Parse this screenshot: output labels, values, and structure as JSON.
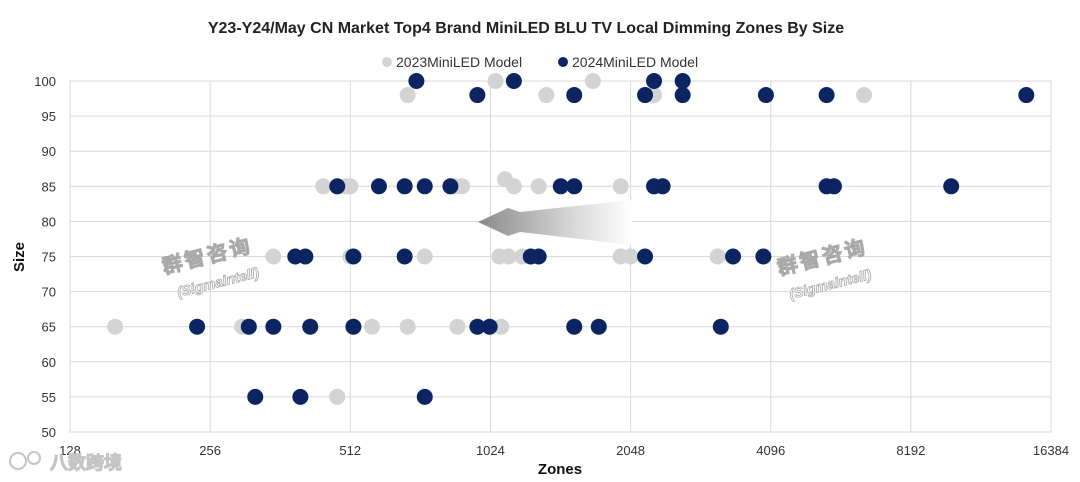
{
  "chart_data": {
    "type": "scatter",
    "title": "Y23-Y24/May CN Market Top4 Brand MiniLED BLU TV Local Dimming Zones By Size",
    "xlabel": "Zones",
    "ylabel": "Size",
    "x_scale": "log2",
    "xlim": [
      128,
      16384
    ],
    "ylim": [
      50,
      100
    ],
    "x_ticks": [
      128,
      256,
      512,
      1024,
      2048,
      4096,
      8192,
      16384
    ],
    "x_tick_labels": [
      "128",
      "256",
      "512",
      "1024",
      "2048",
      "4096",
      "8192",
      "16384"
    ],
    "y_ticks": [
      50,
      55,
      60,
      65,
      70,
      75,
      80,
      85,
      90,
      95,
      100
    ],
    "y_tick_labels": [
      "50",
      "55",
      "60",
      "65",
      "70",
      "75",
      "80",
      "85",
      "90",
      "95",
      "100"
    ],
    "grid": true,
    "legend_position": "top",
    "series": [
      {
        "name": "2023MiniLED Model",
        "color": "#d3d3d3",
        "points": [
          [
            680,
            98
          ],
          [
            1050,
            100
          ],
          [
            1350,
            98
          ],
          [
            1700,
            100
          ],
          [
            2300,
            98
          ],
          [
            6500,
            98
          ],
          [
            448,
            85
          ],
          [
            500,
            85
          ],
          [
            512,
            85
          ],
          [
            860,
            85
          ],
          [
            890,
            85
          ],
          [
            1100,
            86
          ],
          [
            1150,
            85
          ],
          [
            1300,
            85
          ],
          [
            1950,
            85
          ],
          [
            350,
            75
          ],
          [
            512,
            75
          ],
          [
            740,
            75
          ],
          [
            1070,
            75
          ],
          [
            1120,
            75
          ],
          [
            1200,
            75
          ],
          [
            1950,
            75
          ],
          [
            2050,
            75
          ],
          [
            3150,
            75
          ],
          [
            160,
            65
          ],
          [
            300,
            65
          ],
          [
            570,
            65
          ],
          [
            680,
            65
          ],
          [
            870,
            65
          ],
          [
            1080,
            65
          ],
          [
            1550,
            65
          ],
          [
            480,
            55
          ]
        ]
      },
      {
        "name": "2024MiniLED Model",
        "color": "#0c2461",
        "points": [
          [
            710,
            100
          ],
          [
            1150,
            100
          ],
          [
            2300,
            100
          ],
          [
            2650,
            100
          ],
          [
            960,
            98
          ],
          [
            1550,
            98
          ],
          [
            2200,
            98
          ],
          [
            2650,
            98
          ],
          [
            4000,
            98
          ],
          [
            5400,
            98
          ],
          [
            14500,
            98
          ],
          [
            480,
            85
          ],
          [
            590,
            85
          ],
          [
            670,
            85
          ],
          [
            740,
            85
          ],
          [
            840,
            85
          ],
          [
            1450,
            85
          ],
          [
            1550,
            85
          ],
          [
            2300,
            85
          ],
          [
            2400,
            85
          ],
          [
            5400,
            85
          ],
          [
            5600,
            85
          ],
          [
            10000,
            85
          ],
          [
            390,
            75
          ],
          [
            410,
            75
          ],
          [
            520,
            75
          ],
          [
            670,
            75
          ],
          [
            1250,
            75
          ],
          [
            1300,
            75
          ],
          [
            2200,
            75
          ],
          [
            3400,
            75
          ],
          [
            3950,
            75
          ],
          [
            240,
            65
          ],
          [
            310,
            65
          ],
          [
            350,
            65
          ],
          [
            420,
            65
          ],
          [
            520,
            65
          ],
          [
            960,
            65
          ],
          [
            1020,
            65
          ],
          [
            1550,
            65
          ],
          [
            1750,
            65
          ],
          [
            3200,
            65
          ],
          [
            320,
            55
          ],
          [
            400,
            55
          ],
          [
            740,
            55
          ]
        ]
      }
    ]
  },
  "watermarks": {
    "brand_cn": "群智咨询",
    "brand_en": "(Sigmaintell)",
    "corner": "八数跨境"
  }
}
